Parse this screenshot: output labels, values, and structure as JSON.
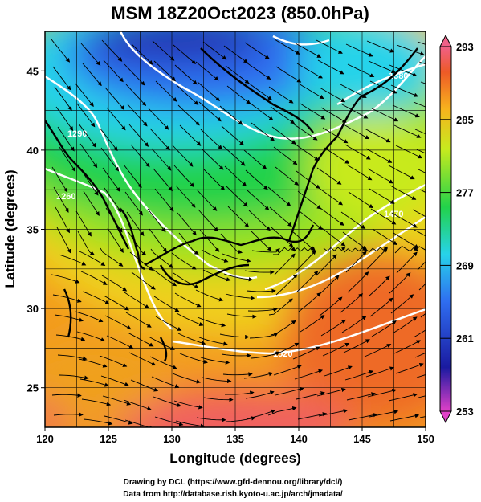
{
  "figure": {
    "title": "MSM 18Z20Oct2023 (850.0hPa)",
    "xlabel": "Longitude (degrees)",
    "ylabel": "Latitude  (degrees)",
    "credit_line1": "Drawing by DCL (https://www.gfd-dennou.org/library/dcl/)",
    "credit_line2": "Data from http://database.rish.kyoto-u.ac.jp/arch/jmadata/"
  },
  "map": {
    "lon_range": [
      120,
      150
    ],
    "lat_range": [
      22.5,
      47.5
    ],
    "x_ticks": [
      "120",
      "125",
      "130",
      "135",
      "140",
      "145",
      "150"
    ],
    "y_ticks": [
      "25",
      "30",
      "35",
      "40",
      "45"
    ],
    "field": "temperature (K) at 850 hPa with wind streamlines and white geopotential contours",
    "contour_labels": [
      "1260",
      "1290",
      "1320",
      "1350",
      "1380",
      "1410",
      "1470",
      "1500",
      "1520"
    ]
  },
  "colorbar": {
    "min": 253,
    "max": 293,
    "tick_labels": [
      "293",
      "285",
      "277",
      "269",
      "261",
      "253"
    ],
    "colors": [
      "#e040c8",
      "#1a1aa0",
      "#2f6df0",
      "#27d3ea",
      "#22d24a",
      "#c8ea1e",
      "#f7b21d",
      "#ee5a27",
      "#f06088"
    ]
  }
}
